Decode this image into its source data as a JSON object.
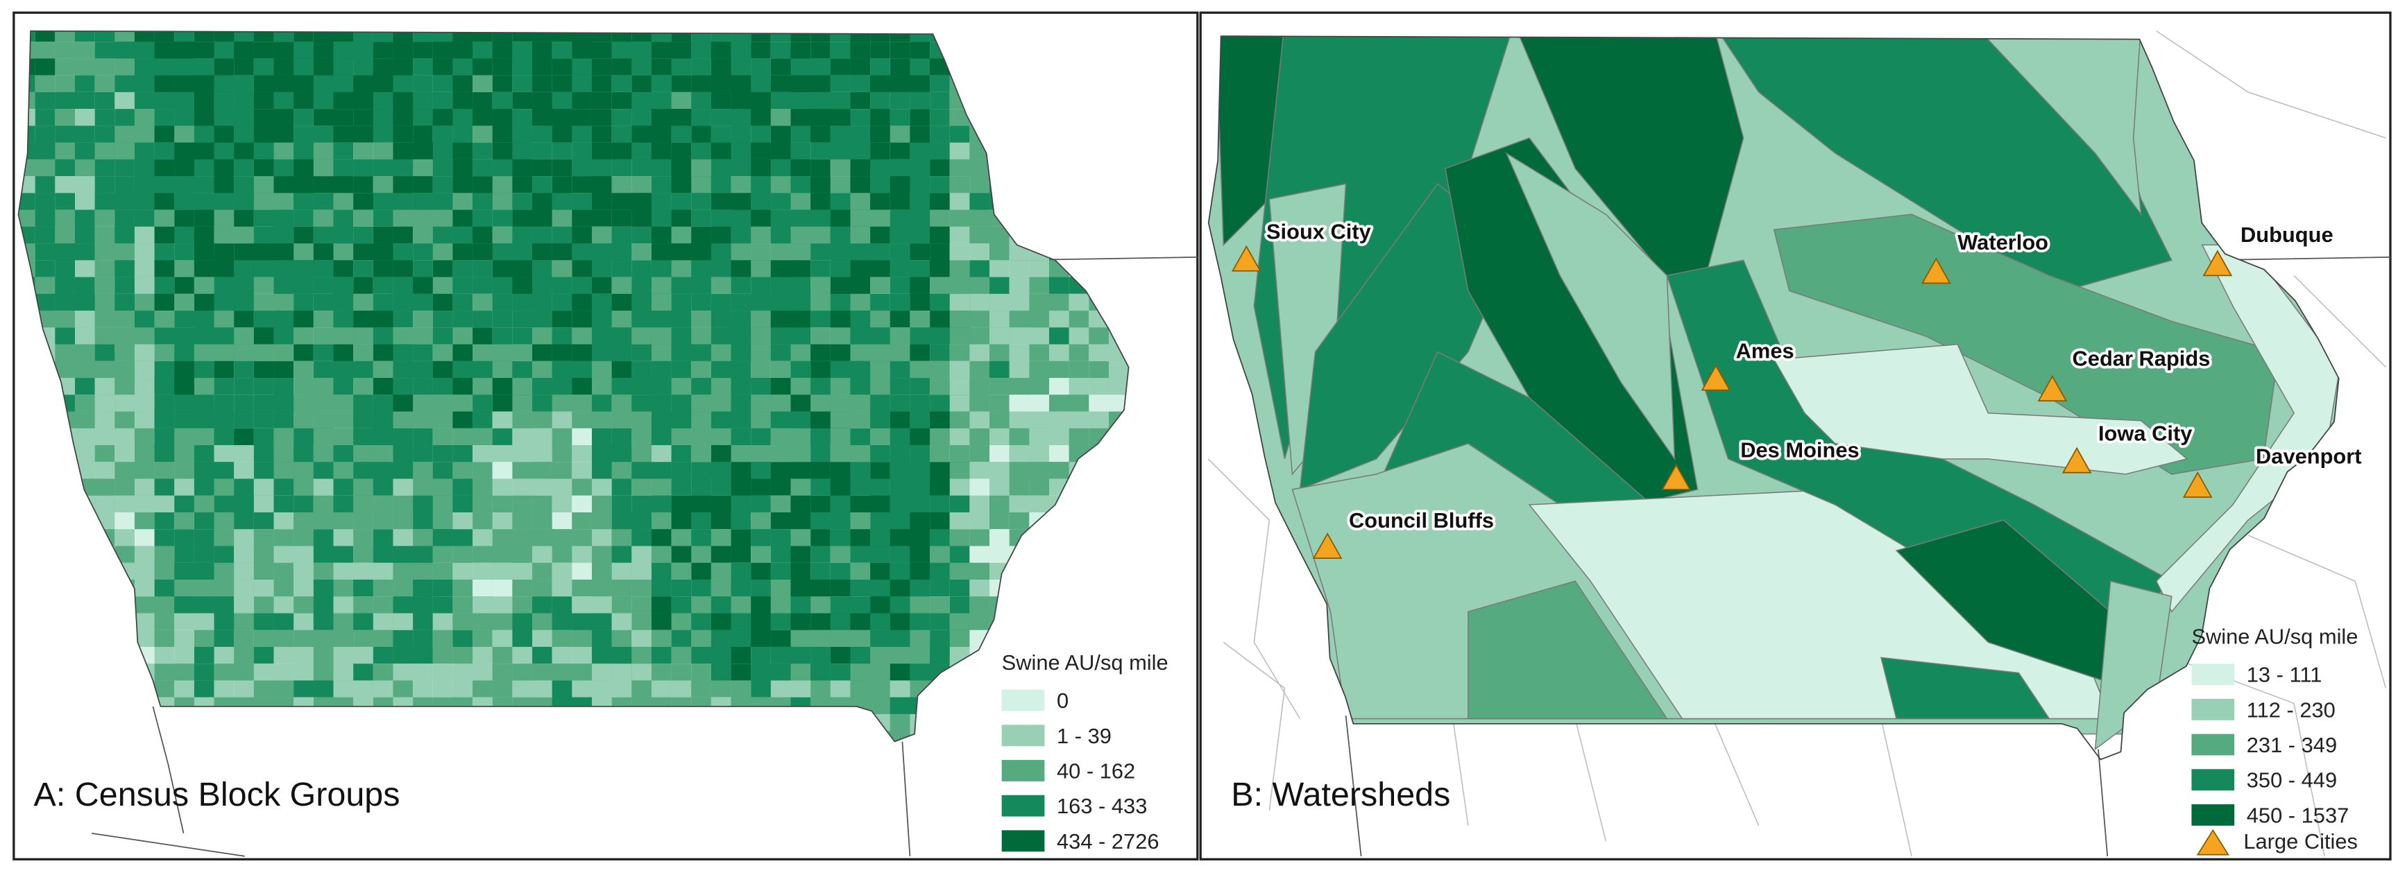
{
  "panels": [
    {
      "title": "A: Census Block Groups",
      "legend": {
        "title": "Swine AU/sq mile",
        "items": [
          {
            "label": "0",
            "color": "#d4f1e6"
          },
          {
            "label": "1 - 39",
            "color": "#97d0b4"
          },
          {
            "label": "40 - 162",
            "color": "#55aa80"
          },
          {
            "label": "163 - 433",
            "color": "#14895b"
          },
          {
            "label": "434 - 2726",
            "color": "#006a3b"
          }
        ]
      }
    },
    {
      "title": "B: Watersheds",
      "legend": {
        "title": "Swine AU/sq mile",
        "items": [
          {
            "label": "13 - 111",
            "color": "#d4f1e6"
          },
          {
            "label": "112 - 230",
            "color": "#97d0b4"
          },
          {
            "label": "231 - 349",
            "color": "#55aa80"
          },
          {
            "label": "350 - 449",
            "color": "#14895b"
          },
          {
            "label": "450 - 1537",
            "color": "#006a3b"
          }
        ],
        "cities_label": "Large Cities"
      },
      "cities": [
        {
          "name": "Sioux City"
        },
        {
          "name": "Waterloo"
        },
        {
          "name": "Dubuque"
        },
        {
          "name": "Ames"
        },
        {
          "name": "Cedar Rapids"
        },
        {
          "name": "Iowa City"
        },
        {
          "name": "Davenport"
        },
        {
          "name": "Des Moines"
        },
        {
          "name": "Council Bluffs"
        }
      ]
    }
  ]
}
